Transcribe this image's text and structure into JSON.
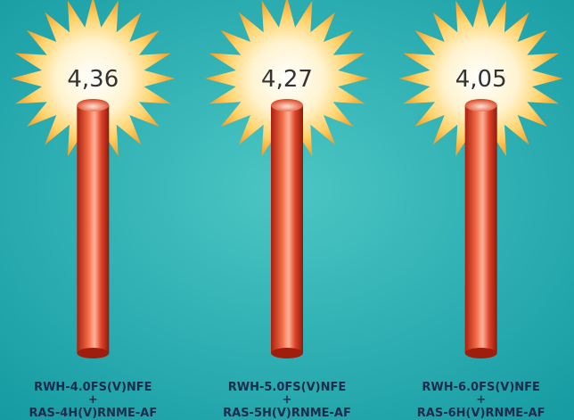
{
  "chart_data": {
    "type": "bar",
    "categories": [
      [
        "RWH-4.0FS(V)NFE",
        "+",
        "RAS-4H(V)RNME-AF"
      ],
      [
        "RWH-5.0FS(V)NFE",
        "+",
        "RAS-5H(V)RNME-AF"
      ],
      [
        "RWH-6.0FS(V)NFE",
        "+",
        "RAS-6H(V)RNME-AF"
      ]
    ],
    "values": [
      4.36,
      4.27,
      4.05
    ],
    "value_labels": [
      "4,36",
      "4,27",
      "4,05"
    ],
    "color": "#e0452a"
  }
}
